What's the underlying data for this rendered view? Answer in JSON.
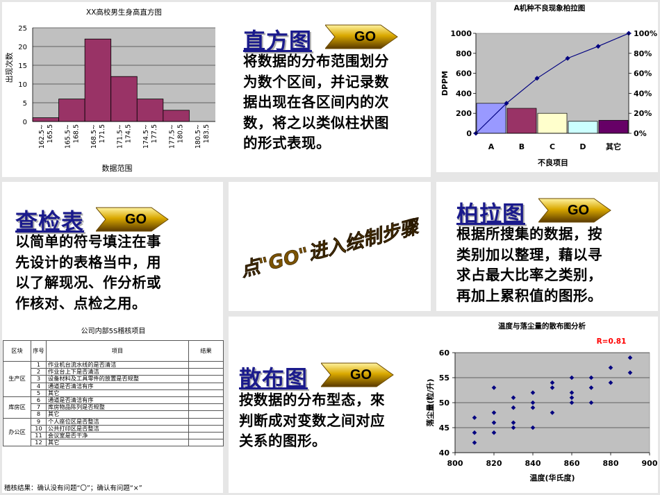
{
  "sections": {
    "histogram": {
      "title": "直方图",
      "go_label": "GO",
      "desc": [
        "将数据的分布范围划分",
        "为数个区间，并记录数",
        "据出现在各区间内的次",
        "数，将之以类似柱状图",
        "的形式表现。"
      ]
    },
    "pareto": {
      "title": "柏拉图",
      "go_label": "GO",
      "desc": [
        "根据所搜集的数据，按",
        "类别加以整理，藉以寻",
        "求占最大比率之类别，",
        "再加上累积值的图形。"
      ]
    },
    "checksheet": {
      "title": "查检表",
      "go_label": "GO",
      "desc": [
        "以简单的符号填注在事",
        "先设计的表格当中，用",
        "以了解现况、作分析或",
        "作核对、点检之用。"
      ]
    },
    "scatter": {
      "title": "散布图",
      "go_label": "GO",
      "desc": [
        "按数据的分布型态，來",
        "判断成对变数之间对应",
        "关系的图形。"
      ]
    }
  },
  "center_text": "点\"GO\"进入绘制步骤",
  "checktable": {
    "title": "公司内部5S稽核项目",
    "headers": [
      "区块",
      "序号",
      "项目",
      "结果"
    ],
    "groups": [
      {
        "area": "生产区",
        "rows": [
          [
            "1",
            "作业机台流水线的是否清洁"
          ],
          [
            "2",
            "作业台上下是否清洁"
          ],
          [
            "3",
            "设备材料及工具零件的放置是否规整"
          ],
          [
            "4",
            "通道是否清洁有序"
          ],
          [
            "5",
            "其它"
          ]
        ]
      },
      {
        "area": "库房区",
        "rows": [
          [
            "6",
            "通道是否清洁有序"
          ],
          [
            "7",
            "库房物品陈列是否规整"
          ],
          [
            "8",
            "其它"
          ]
        ]
      },
      {
        "area": "办公区",
        "rows": [
          [
            "9",
            "个人座位区是否整洁"
          ],
          [
            "10",
            "公共打印区是否整洁"
          ],
          [
            "11",
            "会议室是否干净"
          ],
          [
            "12",
            "其它"
          ]
        ]
      }
    ],
    "footer": "稽核结果：确认没有问题“〇”；确认有问题“×”"
  },
  "chart_data": [
    {
      "type": "bar",
      "title": "XX高校男生身高直方图",
      "xlabel": "数据范围",
      "ylabel": "出现次数",
      "categories": [
        "162.5~165.5",
        "165.5~168.5",
        "168.5~171.5",
        "171.5~174.5",
        "174.5~177.5",
        "177.5~180.5",
        "180.5~183.5"
      ],
      "values": [
        1,
        6,
        22,
        12,
        6,
        3,
        0
      ],
      "ylim": [
        0,
        25
      ],
      "yticks": [
        0,
        5,
        10,
        15,
        20,
        25
      ],
      "grid": true,
      "colors": {
        "bar": "#993366",
        "plot_bg": "#c0c0c0"
      }
    },
    {
      "type": "bar",
      "title": "A机种不良现象柏拉图",
      "xlabel": "不良项目",
      "ylabel": "DPPM",
      "categories": [
        "A",
        "B",
        "C",
        "D",
        "其它"
      ],
      "values": [
        300,
        250,
        200,
        120,
        130
      ],
      "ylim": [
        0,
        1000
      ],
      "yticks": [
        0,
        200,
        400,
        600,
        800,
        1000
      ],
      "y2ticks": [
        "0%",
        "20%",
        "40%",
        "60%",
        "80%",
        "100%"
      ],
      "cumulative_percent": [
        0,
        30,
        55,
        75,
        87,
        100
      ],
      "colors": {
        "bars": [
          "#9999ff",
          "#993366",
          "#ffffcc",
          "#ccffff",
          "#660066"
        ],
        "line": "#000080",
        "plot_bg": "#c0c0c0"
      }
    },
    {
      "type": "scatter",
      "title": "温度与落尘量的散布图分析",
      "annotation": "R=0.81",
      "xlabel": "温度(华氏度)",
      "ylabel": "落尘量(粒/升)",
      "xlim": [
        800,
        900
      ],
      "ylim": [
        40,
        60
      ],
      "xticks": [
        800,
        820,
        840,
        860,
        880,
        900
      ],
      "yticks": [
        40,
        45,
        50,
        55,
        60
      ],
      "points": [
        [
          810,
          47
        ],
        [
          810,
          44
        ],
        [
          810,
          42
        ],
        [
          820,
          53
        ],
        [
          820,
          48
        ],
        [
          820,
          46
        ],
        [
          820,
          44
        ],
        [
          830,
          51
        ],
        [
          830,
          49
        ],
        [
          830,
          46
        ],
        [
          830,
          45
        ],
        [
          840,
          52
        ],
        [
          840,
          50
        ],
        [
          840,
          49
        ],
        [
          840,
          45
        ],
        [
          850,
          54
        ],
        [
          850,
          53
        ],
        [
          850,
          48
        ],
        [
          860,
          55
        ],
        [
          860,
          52
        ],
        [
          860,
          51
        ],
        [
          860,
          50
        ],
        [
          870,
          55
        ],
        [
          870,
          53
        ],
        [
          870,
          50
        ],
        [
          880,
          57
        ],
        [
          880,
          54
        ],
        [
          890,
          59
        ],
        [
          890,
          56
        ]
      ],
      "colors": {
        "point": "#000080",
        "plot_bg": "#c0c0c0",
        "annotation": "#ff0000"
      }
    }
  ]
}
